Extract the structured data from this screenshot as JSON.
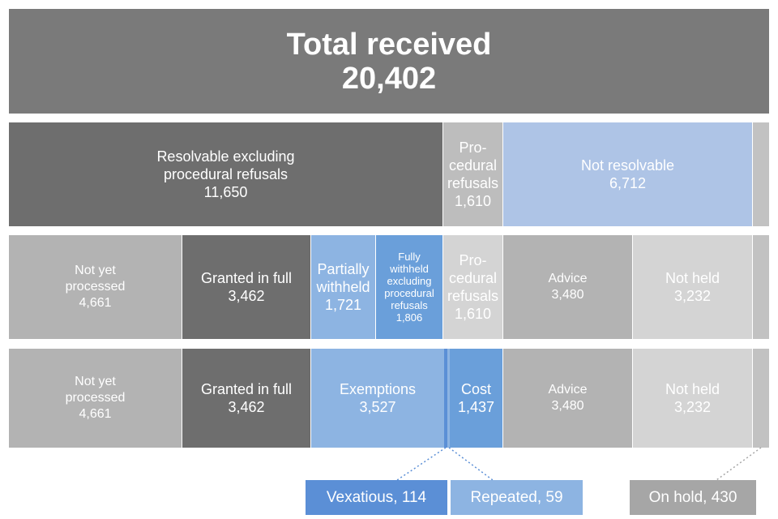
{
  "total": {
    "label": "Total received",
    "value": "20,402"
  },
  "row1": {
    "resolvable": {
      "label_1": "Resolvable excluding",
      "label_2": "procedural refusals",
      "value": "11,650"
    },
    "procedural": {
      "label_1": "Pro-",
      "label_2": "cedural",
      "label_3": "refusals",
      "value": "1,610"
    },
    "not_resolvable": {
      "label": "Not resolvable",
      "value": "6,712"
    }
  },
  "row2": {
    "not_yet": {
      "label_1": "Not yet",
      "label_2": "processed",
      "value": "4,661"
    },
    "granted": {
      "label": "Granted in full",
      "value": "3,462"
    },
    "partially": {
      "label_1": "Partially",
      "label_2": "withheld",
      "value": "1,721"
    },
    "fully": {
      "label_1": "Fully",
      "label_2": "withheld",
      "label_3": "excluding",
      "label_4": "procedural",
      "label_5": "refusals",
      "value": "1,806"
    },
    "procedural": {
      "label_1": "Pro-",
      "label_2": "cedural",
      "label_3": "refusals",
      "value": "1,610"
    },
    "advice": {
      "label": "Advice",
      "value": "3,480"
    },
    "not_held": {
      "label": "Not held",
      "value": "3,232"
    }
  },
  "row3": {
    "not_yet": {
      "label_1": "Not yet",
      "label_2": "processed",
      "value": "4,661"
    },
    "granted": {
      "label": "Granted in full",
      "value": "3,462"
    },
    "exemptions": {
      "label": "Exemptions",
      "value": "3,527"
    },
    "cost": {
      "label": "Cost",
      "value": "1,437"
    },
    "advice": {
      "label": "Advice",
      "value": "3,480"
    },
    "not_held": {
      "label": "Not held",
      "value": "3,232"
    }
  },
  "callouts": {
    "vexatious": "Vexatious, 114",
    "repeated": "Repeated, 59",
    "on_hold": "On hold, 430"
  }
}
